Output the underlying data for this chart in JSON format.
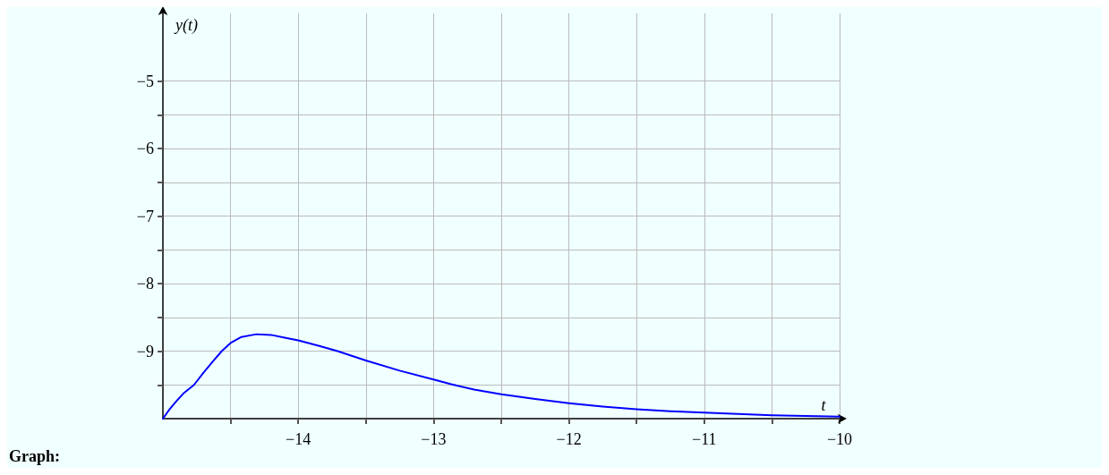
{
  "chart_data": {
    "type": "line",
    "xlabel": "t",
    "ylabel": "y(t)",
    "annotations": [
      "Graph:"
    ],
    "x": [
      -15,
      -14.95,
      -14.9,
      -14.85,
      -14.77,
      -14.7,
      -14.63,
      -14.565,
      -14.5,
      -14.42,
      -14.31,
      -14.2,
      -14.1,
      -14,
      -13.85,
      -13.71,
      -13.5,
      -13.25,
      -13,
      -12.87,
      -12.7,
      -12.5,
      -12.25,
      -12,
      -11.75,
      -11.5,
      -11.25,
      -11,
      -10.75,
      -10.5,
      -10.25,
      -10
    ],
    "series": [
      {
        "color": "#0000ff",
        "values": [
          -10,
          -9.86,
          -9.74,
          -9.63,
          -9.5,
          -9.32,
          -9.15,
          -9.0,
          -8.88,
          -8.79,
          -8.75,
          -8.76,
          -8.8,
          -8.84,
          -8.92,
          -9.0,
          -9.14,
          -9.29,
          -9.42,
          -9.49,
          -9.57,
          -9.64,
          -9.71,
          -9.77,
          -9.82,
          -9.86,
          -9.89,
          -9.91,
          -9.93,
          -9.95,
          -9.96,
          -9.97
        ]
      }
    ],
    "xlim": [
      -15,
      -10
    ],
    "ylim": [
      -10,
      -4
    ],
    "xticks": [
      {
        "value": -14.5,
        "label": null
      },
      {
        "value": -14,
        "label": "−14"
      },
      {
        "value": -13.5,
        "label": null
      },
      {
        "value": -13,
        "label": "−13"
      },
      {
        "value": -12.5,
        "label": null
      },
      {
        "value": -12,
        "label": "−12"
      },
      {
        "value": -11.5,
        "label": null
      },
      {
        "value": -11,
        "label": "−11"
      },
      {
        "value": -10.5,
        "label": null
      },
      {
        "value": -10,
        "label": "−10"
      }
    ],
    "yticks": [
      {
        "value": -9.5,
        "label": null
      },
      {
        "value": -9,
        "label": "−9"
      },
      {
        "value": -8.5,
        "label": null
      },
      {
        "value": -8,
        "label": "−8"
      },
      {
        "value": -7.5,
        "label": null
      },
      {
        "value": -7,
        "label": "−7"
      },
      {
        "value": -6.5,
        "label": null
      },
      {
        "value": -6,
        "label": "−6"
      },
      {
        "value": -5.5,
        "label": null
      },
      {
        "value": -5,
        "label": "−5"
      }
    ],
    "grid": true,
    "marker": "none",
    "line_style": "solid"
  }
}
